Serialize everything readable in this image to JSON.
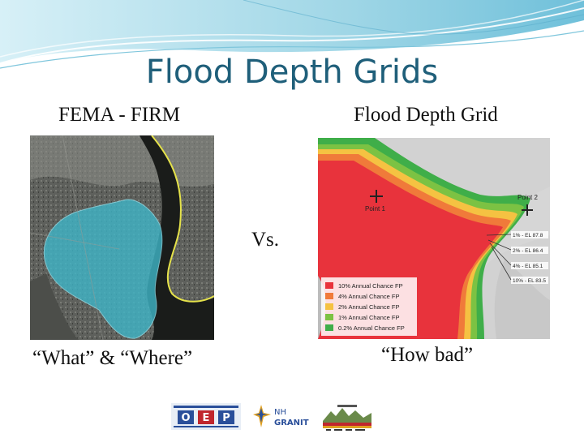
{
  "slide": {
    "title": "Flood Depth Grids",
    "left_label": "FEMA - FIRM",
    "right_label": "Flood Depth Grid",
    "vs_text": "Vs.",
    "left_caption": "“What” & “Where”",
    "right_caption": "“How bad”"
  },
  "depth_map": {
    "point1": "Point 1",
    "point2": "Point 2",
    "elevations": [
      "1% - EL 87.8",
      "2% - EL 86.4",
      "4% - EL 85.1",
      "10% - EL 83.5"
    ],
    "legend": [
      {
        "label": "10% Annual Chance FP",
        "color": "#e8333c"
      },
      {
        "label": "4% Annual Chance FP",
        "color": "#f07a3a"
      },
      {
        "label": "2% Annual Chance FP",
        "color": "#f5c242"
      },
      {
        "label": "1% Annual Chance FP",
        "color": "#7cc243"
      },
      {
        "label": "0.2% Annual Chance FP",
        "color": "#3fae49"
      }
    ]
  },
  "logos": {
    "ofp_letters": [
      "O",
      "E",
      "P"
    ],
    "nh": "NH",
    "granit": "GRANIT"
  },
  "colors": {
    "title": "#1f5f7a",
    "banner": "#a9dcea",
    "floodplain": "#3fb6c8"
  }
}
